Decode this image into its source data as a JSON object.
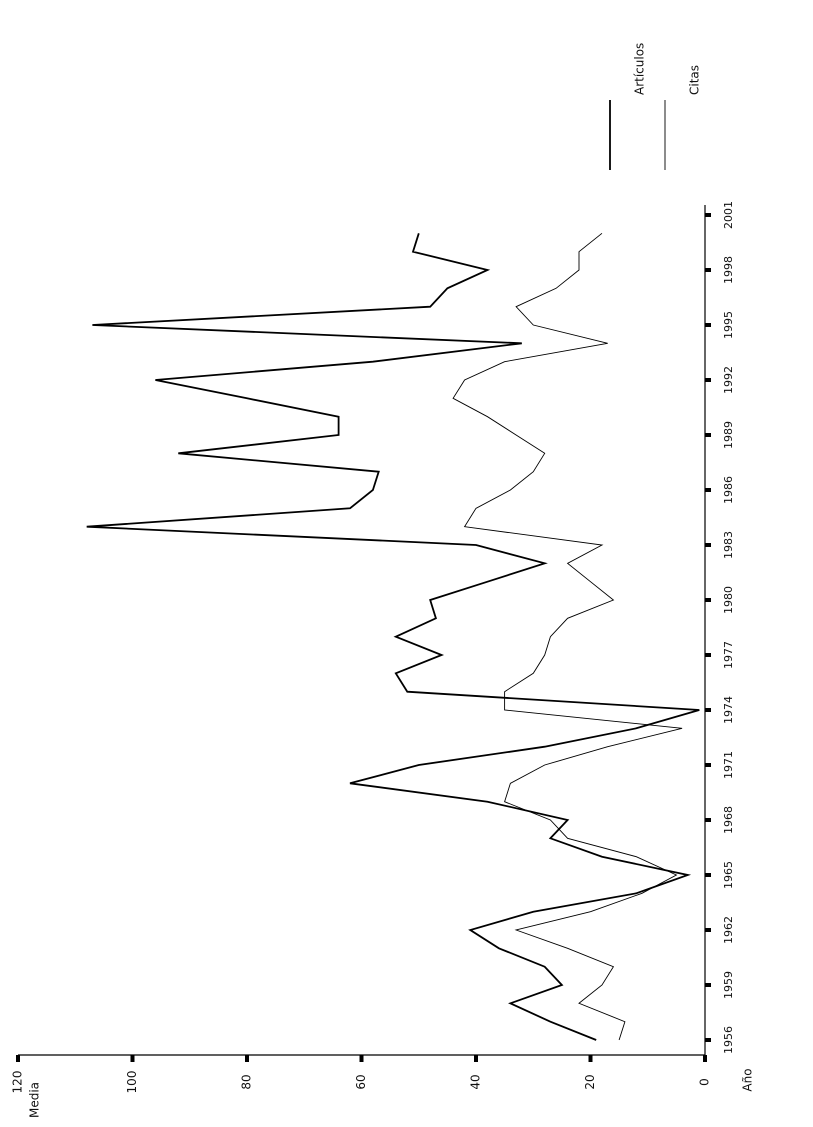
{
  "chart_data": {
    "type": "line",
    "x_label": "Año",
    "y_label": "Media",
    "x": [
      1956,
      1957,
      1958,
      1959,
      1960,
      1961,
      1962,
      1963,
      1964,
      1965,
      1966,
      1967,
      1968,
      1969,
      1970,
      1971,
      1972,
      1973,
      1974,
      1975,
      1976,
      1977,
      1978,
      1979,
      1980,
      1981,
      1982,
      1983,
      1984,
      1985,
      1986,
      1987,
      1988,
      1989,
      1990,
      1991,
      1992,
      1993,
      1994,
      1995,
      1996,
      1997,
      1998,
      1999,
      2000
    ],
    "series": [
      {
        "name": "Artículos",
        "color": "#000000",
        "values": [
          19,
          27,
          34,
          25,
          28,
          36,
          41,
          30,
          12,
          3,
          18,
          27,
          24,
          38,
          62,
          50,
          28,
          12,
          1,
          52,
          54,
          46,
          54,
          47,
          48,
          38,
          28,
          40,
          108,
          62,
          58,
          57,
          92,
          64,
          64,
          80,
          96,
          58,
          32,
          107,
          48,
          45,
          38,
          51,
          50
        ]
      },
      {
        "name": "Citas",
        "color": "#000000",
        "values": [
          15,
          14,
          22,
          18,
          16,
          24,
          33,
          20,
          11,
          5,
          12,
          24,
          27,
          35,
          34,
          28,
          17,
          4,
          35,
          35,
          30,
          28,
          27,
          24,
          16,
          20,
          24,
          18,
          42,
          40,
          34,
          30,
          28,
          33,
          38,
          44,
          42,
          35,
          17,
          30,
          33,
          26,
          22,
          22,
          18
        ]
      }
    ],
    "xlim": [
      1956,
      2001
    ],
    "xticks": [
      1956,
      1959,
      1962,
      1965,
      1968,
      1971,
      1974,
      1977,
      1980,
      1983,
      1986,
      1989,
      1992,
      1995,
      1998,
      2001
    ],
    "ylim": [
      0,
      120
    ],
    "yticks": [
      0,
      20,
      40,
      60,
      80,
      100,
      120
    ],
    "grid": false
  }
}
